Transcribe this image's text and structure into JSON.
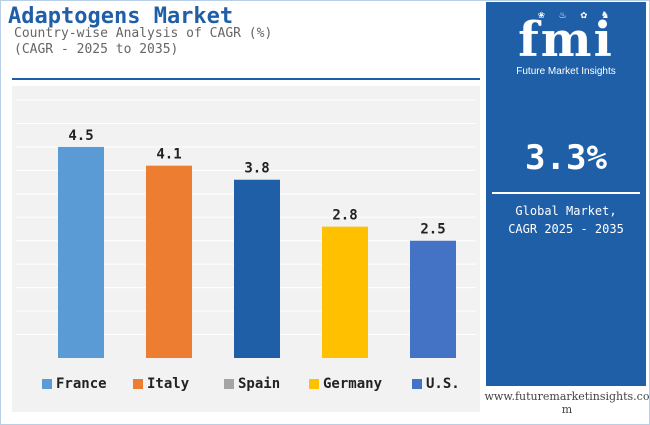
{
  "header": {
    "title": "Adaptogens Market",
    "subtitle_line1": "Country-wise Analysis of CAGR (%)",
    "subtitle_line2": "(CAGR - 2025 to 2035)"
  },
  "chart_data": {
    "type": "bar",
    "categories": [
      "France",
      "Italy",
      "Spain",
      "Germany",
      "U.S."
    ],
    "values": [
      4.5,
      4.1,
      3.8,
      2.8,
      2.5
    ],
    "value_labels": [
      "4.5",
      "4.1",
      "3.8",
      "2.8",
      "2.5"
    ],
    "colors": [
      "#5b9bd5",
      "#ed7d31",
      "#a5a5a5",
      "#ffc000",
      "#4472c4"
    ],
    "bar_colors": [
      "#5b9bd5",
      "#ed7d31",
      "#1f5fa8",
      "#ffc000",
      "#4472c4"
    ],
    "ylim": [
      0,
      5.5
    ],
    "grid": true,
    "legend": "bottom",
    "title": "",
    "xlabel": "",
    "ylabel": ""
  },
  "sidebar": {
    "logo_text": "fmi",
    "logo_caption": "Future Market Insights",
    "cagr_value": "3.3%",
    "cagr_caption_line1": "Global Market,",
    "cagr_caption_line2": "CAGR 2025 - 2035"
  },
  "footer": {
    "url": "www.futuremarketinsights.com"
  },
  "theme": {
    "accent": "#1f5fa8",
    "panel_bg": "#f2f2f2"
  }
}
